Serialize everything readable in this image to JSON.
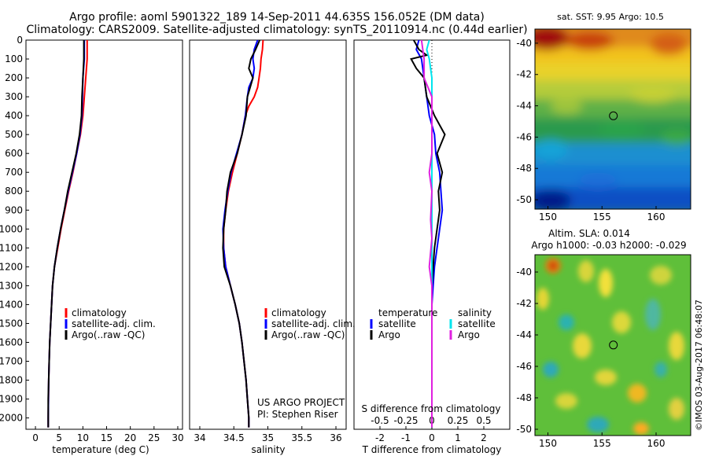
{
  "header": {
    "line1": "Argo profile: aoml 5901322_189 14-Sep-2011 44.635S 156.052E (DM data)",
    "line2": "Climatology: CARS2009. Satellite-adjusted climatology: synTS_20110914.nc (0.44d earlier)"
  },
  "colors": {
    "climatology": "#ff0000",
    "satellite": "#0000ff",
    "argo": "#000000",
    "sat_salinity": "#00e5ee",
    "argo_salinity": "#e020e0"
  },
  "chart_data": [
    {
      "type": "line",
      "id": "temperature",
      "xlabel": "temperature (deg C)",
      "ylim": [
        2060,
        0
      ],
      "xlim": [
        -2,
        31
      ],
      "xticks": [
        "0",
        "5",
        "10",
        "15",
        "20",
        "25",
        "30"
      ],
      "yticks": [
        "0",
        "100",
        "200",
        "300",
        "400",
        "500",
        "600",
        "700",
        "800",
        "900",
        "1000",
        "1100",
        "1200",
        "1300",
        "1400",
        "1500",
        "1600",
        "1700",
        "1800",
        "1900",
        "2000"
      ],
      "legend": [
        "climatology",
        "satellite-adj. clim.",
        "Argo(..raw -QC)"
      ],
      "series": [
        {
          "name": "climatology",
          "color": "#ff0000",
          "points": [
            [
              10.9,
              0
            ],
            [
              10.9,
              100
            ],
            [
              10.6,
              200
            ],
            [
              10.3,
              300
            ],
            [
              10.0,
              400
            ],
            [
              9.5,
              500
            ],
            [
              8.7,
              600
            ],
            [
              7.9,
              700
            ],
            [
              7.0,
              800
            ],
            [
              6.2,
              900
            ],
            [
              5.4,
              1000
            ],
            [
              4.7,
              1100
            ],
            [
              4.0,
              1200
            ],
            [
              3.6,
              1300
            ],
            [
              3.4,
              1400
            ],
            [
              3.2,
              1500
            ],
            [
              3.0,
              1600
            ],
            [
              2.9,
              1700
            ],
            [
              2.8,
              1800
            ],
            [
              2.75,
              1900
            ],
            [
              2.7,
              2000
            ],
            [
              2.7,
              2050
            ]
          ]
        },
        {
          "name": "satellite-adj. clim.",
          "color": "#0000ff",
          "points": [
            [
              10.3,
              0
            ],
            [
              10.3,
              100
            ],
            [
              10.0,
              200
            ],
            [
              9.9,
              300
            ],
            [
              9.8,
              400
            ],
            [
              9.4,
              500
            ],
            [
              8.7,
              600
            ],
            [
              7.8,
              700
            ],
            [
              6.9,
              800
            ],
            [
              6.1,
              900
            ],
            [
              5.3,
              1000
            ],
            [
              4.6,
              1100
            ],
            [
              4.0,
              1200
            ],
            [
              3.6,
              1300
            ],
            [
              3.4,
              1400
            ],
            [
              3.2,
              1500
            ],
            [
              3.0,
              1600
            ],
            [
              2.9,
              1700
            ],
            [
              2.8,
              1800
            ],
            [
              2.75,
              1900
            ],
            [
              2.7,
              2000
            ],
            [
              2.7,
              2050
            ]
          ]
        },
        {
          "name": "Argo(..raw -QC)",
          "color": "#000000",
          "points": [
            [
              10.2,
              0
            ],
            [
              10.2,
              100
            ],
            [
              10.0,
              200
            ],
            [
              9.8,
              300
            ],
            [
              9.7,
              400
            ],
            [
              9.3,
              500
            ],
            [
              8.6,
              600
            ],
            [
              7.7,
              700
            ],
            [
              6.8,
              800
            ],
            [
              6.1,
              900
            ],
            [
              5.3,
              1000
            ],
            [
              4.6,
              1100
            ],
            [
              4.0,
              1200
            ],
            [
              3.6,
              1300
            ],
            [
              3.4,
              1400
            ],
            [
              3.2,
              1500
            ],
            [
              3.0,
              1600
            ],
            [
              2.9,
              1700
            ],
            [
              2.8,
              1800
            ],
            [
              2.7,
              1900
            ],
            [
              2.7,
              2000
            ],
            [
              2.7,
              2050
            ]
          ]
        }
      ]
    },
    {
      "type": "line",
      "id": "salinity",
      "xlabel": "salinity",
      "ylim": [
        2060,
        0
      ],
      "xlim": [
        33.85,
        36.15
      ],
      "xticks": [
        "34",
        "34.5",
        "35",
        "35.5",
        "36"
      ],
      "legend": [
        "climatology",
        "satellite-adj. clim.",
        "Argo(..raw -QC)"
      ],
      "annotation": [
        "US ARGO PROJECT",
        "PI: Stephen Riser"
      ],
      "series": [
        {
          "name": "climatology",
          "color": "#ff0000",
          "points": [
            [
              34.93,
              0
            ],
            [
              34.92,
              50
            ],
            [
              34.9,
              100
            ],
            [
              34.89,
              150
            ],
            [
              34.87,
              200
            ],
            [
              34.85,
              250
            ],
            [
              34.8,
              300
            ],
            [
              34.72,
              350
            ],
            [
              34.67,
              400
            ],
            [
              34.62,
              500
            ],
            [
              34.55,
              600
            ],
            [
              34.48,
              700
            ],
            [
              34.42,
              800
            ],
            [
              34.38,
              900
            ],
            [
              34.35,
              1000
            ],
            [
              34.35,
              1100
            ],
            [
              34.38,
              1200
            ],
            [
              34.45,
              1300
            ],
            [
              34.52,
              1400
            ],
            [
              34.58,
              1500
            ],
            [
              34.62,
              1600
            ],
            [
              34.65,
              1700
            ],
            [
              34.68,
              1800
            ],
            [
              34.7,
              1900
            ],
            [
              34.72,
              2000
            ],
            [
              34.72,
              2050
            ]
          ]
        },
        {
          "name": "satellite-adj. clim.",
          "color": "#0000ff",
          "points": [
            [
              34.85,
              0
            ],
            [
              34.8,
              50
            ],
            [
              34.78,
              100
            ],
            [
              34.8,
              150
            ],
            [
              34.78,
              200
            ],
            [
              34.72,
              250
            ],
            [
              34.7,
              300
            ],
            [
              34.67,
              400
            ],
            [
              34.62,
              500
            ],
            [
              34.54,
              600
            ],
            [
              34.46,
              700
            ],
            [
              34.41,
              800
            ],
            [
              34.37,
              900
            ],
            [
              34.34,
              1000
            ],
            [
              34.35,
              1100
            ],
            [
              34.38,
              1200
            ],
            [
              34.45,
              1300
            ],
            [
              34.52,
              1400
            ],
            [
              34.58,
              1500
            ],
            [
              34.62,
              1600
            ],
            [
              34.65,
              1700
            ],
            [
              34.68,
              1800
            ],
            [
              34.7,
              1900
            ],
            [
              34.72,
              2000
            ],
            [
              34.72,
              2050
            ]
          ]
        },
        {
          "name": "Argo(..raw -QC)",
          "color": "#000000",
          "points": [
            [
              34.88,
              0
            ],
            [
              34.82,
              50
            ],
            [
              34.75,
              100
            ],
            [
              34.72,
              150
            ],
            [
              34.78,
              200
            ],
            [
              34.74,
              250
            ],
            [
              34.7,
              300
            ],
            [
              34.68,
              400
            ],
            [
              34.62,
              500
            ],
            [
              34.55,
              600
            ],
            [
              34.45,
              700
            ],
            [
              34.4,
              800
            ],
            [
              34.38,
              900
            ],
            [
              34.35,
              1000
            ],
            [
              34.34,
              1100
            ],
            [
              34.36,
              1200
            ],
            [
              34.45,
              1300
            ],
            [
              34.52,
              1400
            ],
            [
              34.58,
              1500
            ],
            [
              34.62,
              1600
            ],
            [
              34.65,
              1700
            ],
            [
              34.68,
              1800
            ],
            [
              34.7,
              1900
            ],
            [
              34.72,
              2000
            ],
            [
              34.72,
              2050
            ]
          ]
        }
      ]
    },
    {
      "type": "line",
      "id": "difference",
      "xlabel": "T difference from climatology",
      "x2label": "S difference from climatology",
      "ylim": [
        2060,
        0
      ],
      "xlim": [
        -3,
        3
      ],
      "xticks": [
        "-2",
        "-1",
        "0",
        "1",
        "2"
      ],
      "x2ticks": [
        "-0.5",
        "-0.25",
        "0",
        "0.25",
        "0.5"
      ],
      "legend_temperature": {
        "title": "temperature",
        "items": [
          "satellite",
          "Argo"
        ]
      },
      "legend_salinity": {
        "title": "salinity",
        "items": [
          "satellite",
          "Argo"
        ]
      },
      "series": [
        {
          "name": "temperature satellite",
          "color": "#0000ff",
          "points": [
            [
              -0.5,
              0
            ],
            [
              -0.6,
              50
            ],
            [
              -0.4,
              100
            ],
            [
              -0.3,
              200
            ],
            [
              -0.2,
              300
            ],
            [
              -0.1,
              400
            ],
            [
              0.1,
              500
            ],
            [
              0.15,
              600
            ],
            [
              0.3,
              700
            ],
            [
              0.35,
              800
            ],
            [
              0.4,
              900
            ],
            [
              0.3,
              1000
            ],
            [
              0.2,
              1100
            ],
            [
              0.1,
              1200
            ],
            [
              0.05,
              1300
            ],
            [
              0.0,
              1400
            ],
            [
              0.0,
              1500
            ],
            [
              0.0,
              1600
            ],
            [
              0.0,
              1700
            ],
            [
              0.0,
              1800
            ],
            [
              0.0,
              1900
            ],
            [
              0.0,
              2000
            ],
            [
              0.0,
              2050
            ]
          ]
        },
        {
          "name": "temperature Argo",
          "color": "#000000",
          "points": [
            [
              -0.7,
              0
            ],
            [
              -0.5,
              50
            ],
            [
              -0.2,
              80
            ],
            [
              -0.8,
              100
            ],
            [
              -0.6,
              150
            ],
            [
              -0.3,
              200
            ],
            [
              -0.2,
              300
            ],
            [
              0.1,
              400
            ],
            [
              0.3,
              450
            ],
            [
              0.5,
              500
            ],
            [
              0.2,
              600
            ],
            [
              0.4,
              700
            ],
            [
              0.25,
              800
            ],
            [
              0.3,
              900
            ],
            [
              0.2,
              1000
            ],
            [
              0.1,
              1100
            ],
            [
              0.05,
              1200
            ],
            [
              0.0,
              1300
            ],
            [
              0.0,
              1400
            ],
            [
              0.0,
              1600
            ],
            [
              0.0,
              1800
            ],
            [
              0.0,
              2050
            ]
          ]
        },
        {
          "name": "salinity satellite",
          "color": "#00e5ee",
          "points": [
            [
              -0.1,
              0
            ],
            [
              -0.2,
              50
            ],
            [
              -0.1,
              100
            ],
            [
              0.0,
              200
            ],
            [
              0.0,
              300
            ],
            [
              0.0,
              400
            ],
            [
              0.0,
              600
            ],
            [
              0.0,
              800
            ],
            [
              0.0,
              1000
            ],
            [
              0.0,
              1200
            ],
            [
              0.0,
              1400
            ],
            [
              0.0,
              1600
            ],
            [
              0.0,
              1800
            ],
            [
              0.0,
              2050
            ]
          ]
        },
        {
          "name": "salinity Argo",
          "color": "#e020e0",
          "points": [
            [
              -0.4,
              0
            ],
            [
              -0.3,
              100
            ],
            [
              -0.3,
              200
            ],
            [
              0.0,
              300
            ],
            [
              0.0,
              400
            ],
            [
              0.0,
              600
            ],
            [
              -0.1,
              700
            ],
            [
              0.0,
              800
            ],
            [
              -0.05,
              950
            ],
            [
              0.0,
              1050
            ],
            [
              -0.1,
              1200
            ],
            [
              0.0,
              1300
            ],
            [
              0.0,
              1600
            ],
            [
              0.0,
              2050
            ]
          ]
        }
      ]
    },
    {
      "type": "heatmap",
      "id": "sst_map",
      "title": "sat. SST: 9.95 Argo: 10.5",
      "xticks": [
        "150",
        "155",
        "160"
      ],
      "yticks": [
        "-40",
        "-42",
        "-44",
        "-46",
        "-48",
        "-50"
      ],
      "xlim": [
        148.8,
        163.2
      ],
      "ylim": [
        -50.6,
        -39.1
      ],
      "marker": [
        156.05,
        -44.64
      ]
    },
    {
      "type": "heatmap",
      "id": "sla_map",
      "title_line1": "Altim. SLA: 0.014",
      "title_line2": "Argo h1000: -0.03 h2000: -0.029",
      "xticks": [
        "150",
        "155",
        "160"
      ],
      "yticks": [
        "-40",
        "-42",
        "-44",
        "-46",
        "-48",
        "-50"
      ],
      "xlim": [
        148.8,
        163.2
      ],
      "ylim": [
        -50.4,
        -38.9
      ],
      "marker": [
        156.05,
        -44.64
      ]
    }
  ],
  "footer": {
    "credit": "©IMOS 03-Aug-2017 06:48:07"
  }
}
